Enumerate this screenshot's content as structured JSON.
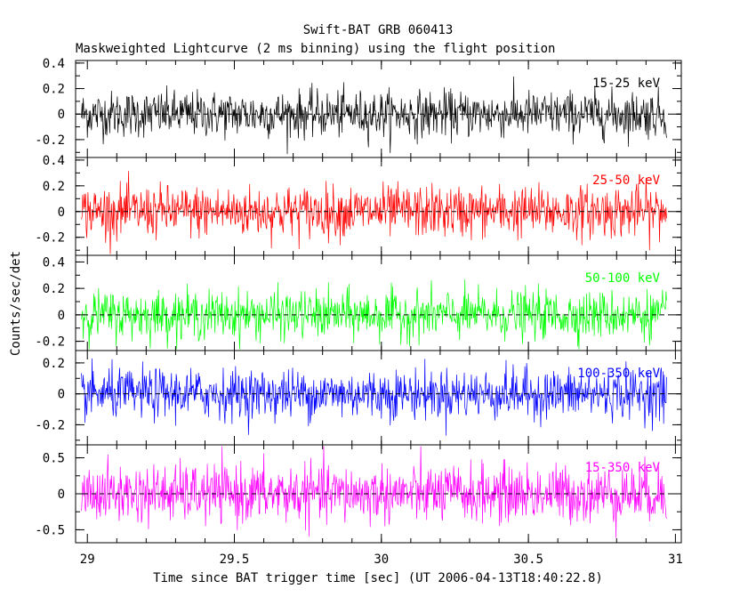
{
  "chart_data": {
    "type": "line",
    "title": "Swift-BAT GRB 060413",
    "subtitle": "Maskweighted Lightcurve (2 ms binning) using the flight position",
    "xlabel": "Time since BAT trigger time [sec] (UT 2006-04-13T18:40:22.8)",
    "ylabel": "Counts/sec/det",
    "xlim": [
      28.96,
      31.02
    ],
    "xticks": [
      29,
      29.5,
      30,
      30.5,
      31
    ],
    "xtick_labels": [
      "29",
      "29.5",
      "30",
      "30.5",
      "31"
    ],
    "x_range_data": [
      28.98,
      30.97
    ],
    "bin_width_sec": 0.002,
    "panels": [
      {
        "name": "15-25 keV",
        "label": "15-25 keV",
        "color": "#000000",
        "ylim": [
          -0.34,
          0.42
        ],
        "yticks": [
          -0.2,
          0,
          0.2,
          0.4
        ],
        "ytick_labels": [
          "-0.2",
          "0",
          "0.2",
          "0.4"
        ],
        "amplitude": 0.09
      },
      {
        "name": "25-50 keV",
        "label": "25-50 keV",
        "color": "#ff0000",
        "ylim": [
          -0.34,
          0.42
        ],
        "yticks": [
          -0.2,
          0,
          0.2,
          0.4
        ],
        "ytick_labels": [
          "-0.2",
          "0",
          "0.2",
          "0.4"
        ],
        "amplitude": 0.1
      },
      {
        "name": "50-100 keV",
        "label": "50-100 keV",
        "color": "#00ff00",
        "ylim": [
          -0.27,
          0.45
        ],
        "yticks": [
          -0.2,
          0,
          0.2,
          0.4
        ],
        "ytick_labels": [
          "-0.2",
          "0",
          "0.2",
          "0.4"
        ],
        "amplitude": 0.09
      },
      {
        "name": "100-350 keV",
        "label": "100-350 keV",
        "color": "#0000ff",
        "ylim": [
          -0.33,
          0.28
        ],
        "yticks": [
          -0.2,
          0,
          0.2
        ],
        "ytick_labels": [
          "-0.2",
          "0",
          "0.2"
        ],
        "amplitude": 0.08
      },
      {
        "name": "15-350 keV",
        "label": "15-350 keV",
        "color": "#ff00ff",
        "ylim": [
          -0.68,
          0.68
        ],
        "yticks": [
          -0.5,
          0,
          0.5
        ],
        "ytick_labels": [
          "-0.5",
          "0",
          "0.5"
        ],
        "amplitude": 0.2
      }
    ]
  }
}
